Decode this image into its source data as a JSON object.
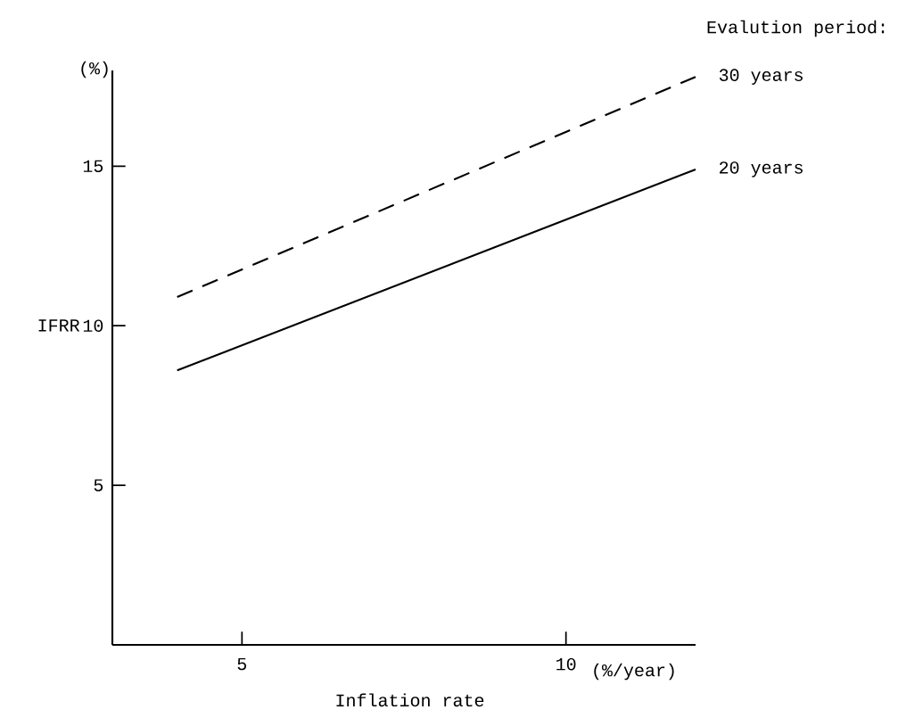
{
  "chart_data": {
    "type": "line",
    "xlabel": "Inflation rate",
    "ylabel": "IFRR",
    "annotations": [
      "Evalution period:",
      "(%)",
      "(%/year)"
    ],
    "x": [
      4,
      12
    ],
    "series": [
      {
        "name": "30 years",
        "color": "#000000",
        "line_style": "dashed",
        "values": [
          10.9,
          17.8
        ]
      },
      {
        "name": "20 years",
        "color": "#000000",
        "line_style": "solid",
        "values": [
          8.6,
          14.9
        ]
      }
    ],
    "xlim": [
      3,
      12
    ],
    "ylim": [
      0,
      18
    ],
    "xticks": [
      5,
      10
    ],
    "yticks": [
      5,
      10,
      15
    ],
    "grid": false,
    "marker": "none"
  }
}
